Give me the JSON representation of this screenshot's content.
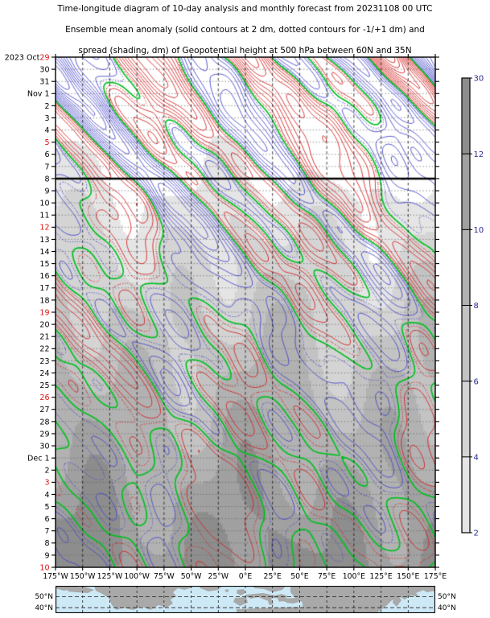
{
  "titles": [
    "Time-longitude diagram of 10-day analysis and monthly forecast from 20231108 00 UTC",
    "Ensemble mean anomaly (solid contours at 2 dm, dotted contours for -1/+1 dm) and",
    "spread (shading, dm) of Geopotential height at 500 hPa between 60N and 35N"
  ],
  "chart_data": {
    "type": "heatmap",
    "subtype": "hovmoller-time-longitude-contour-diagram",
    "quantity": "Geopotential height anomaly and ensemble spread at 500 hPa, 60N-35N mean",
    "init_time": "20231108 00 UTC",
    "x_axis": {
      "label": "longitude",
      "ticks": [
        "175°W",
        "150°W",
        "125°W",
        "100°W",
        "75°W",
        "50°W",
        "25°W",
        "0°E",
        "25°E",
        "50°E",
        "75°E",
        "100°E",
        "125°E",
        "150°E",
        "175°E"
      ],
      "gridline_style": "dashed-vertical-every-25deg"
    },
    "y_axis": {
      "label": "date",
      "range": [
        "2023 Oct 29",
        "2023 Dec 10"
      ],
      "gridline_style": "dotted-horizontal-every-day",
      "red_dates_are_sundays": true,
      "rows": [
        {
          "prefix": "2023 Oct",
          "day": "29",
          "red": true
        },
        {
          "day": "30"
        },
        {
          "day": "31"
        },
        {
          "prefix": "Nov",
          "day": "1"
        },
        {
          "day": "2"
        },
        {
          "day": "3"
        },
        {
          "day": "4"
        },
        {
          "day": "5",
          "red": true
        },
        {
          "day": "6"
        },
        {
          "day": "7"
        },
        {
          "day": "8"
        },
        {
          "day": "9"
        },
        {
          "day": "10"
        },
        {
          "day": "11"
        },
        {
          "day": "12",
          "red": true
        },
        {
          "day": "13"
        },
        {
          "day": "14"
        },
        {
          "day": "15"
        },
        {
          "day": "16"
        },
        {
          "day": "17"
        },
        {
          "day": "18"
        },
        {
          "day": "19",
          "red": true
        },
        {
          "day": "20"
        },
        {
          "day": "21"
        },
        {
          "day": "22"
        },
        {
          "day": "23"
        },
        {
          "day": "24"
        },
        {
          "day": "25"
        },
        {
          "day": "26",
          "red": true
        },
        {
          "day": "27"
        },
        {
          "day": "28"
        },
        {
          "day": "29"
        },
        {
          "day": "30"
        },
        {
          "prefix": "Dec",
          "day": "1"
        },
        {
          "day": "2"
        },
        {
          "day": "3",
          "red": true
        },
        {
          "day": "4"
        },
        {
          "day": "5"
        },
        {
          "day": "6"
        },
        {
          "day": "7"
        },
        {
          "day": "8"
        },
        {
          "day": "9"
        },
        {
          "day": "10",
          "red": true
        }
      ]
    },
    "forecast_divider": {
      "at_date": "Nov 8",
      "row_index": 10,
      "meaning": "boundary between 10-day analysis (above) and monthly forecast (below)",
      "style": "thick black horizontal line"
    },
    "contours": {
      "solid_interval_dm": 2,
      "dotted_levels_dm": [
        -1,
        1
      ],
      "zero_line": {
        "color": "#00c020",
        "style": "solid, thick green"
      },
      "positive_color": "#d62020",
      "negative_color": "#4646cc",
      "pattern_note": "strong eastward-tilting wave trains Oct29-Nov20 weakening to quasi-stationary weak bands by Dec 10"
    },
    "shading": {
      "meaning": "ensemble spread (dm), white below 2 dm, darker gray = larger spread, grows with forecast lead time",
      "levels": [
        2,
        4,
        6,
        8,
        10,
        12,
        30
      ],
      "colors_bottom_to_top": [
        "#e5e5e5",
        "#d4d4d4",
        "#c3c3c3",
        "#b2b2b2",
        "#a1a1a1",
        "#8d8d8d"
      ]
    },
    "colorbar": {
      "ticks": [
        "2",
        "4",
        "6",
        "8",
        "10",
        "12",
        "30"
      ],
      "label_color": "#2b2b90",
      "segment_colors": [
        "#e5e5e5",
        "#d4d4d4",
        "#c3c3c3",
        "#b2b2b2",
        "#a1a1a1",
        "#8d8d8d"
      ]
    }
  },
  "map": {
    "lat_labels": [
      "50°N",
      "40°N"
    ],
    "lat_top": "60N",
    "lat_bottom": "35N",
    "ocean_color": "#cde9f6",
    "land_color": "#a9a9a9"
  },
  "colors": {
    "red_date": "#e01010",
    "tick_text": "#000000",
    "grid_dash": "#1a1a1a",
    "grid_dot": "#606060"
  }
}
